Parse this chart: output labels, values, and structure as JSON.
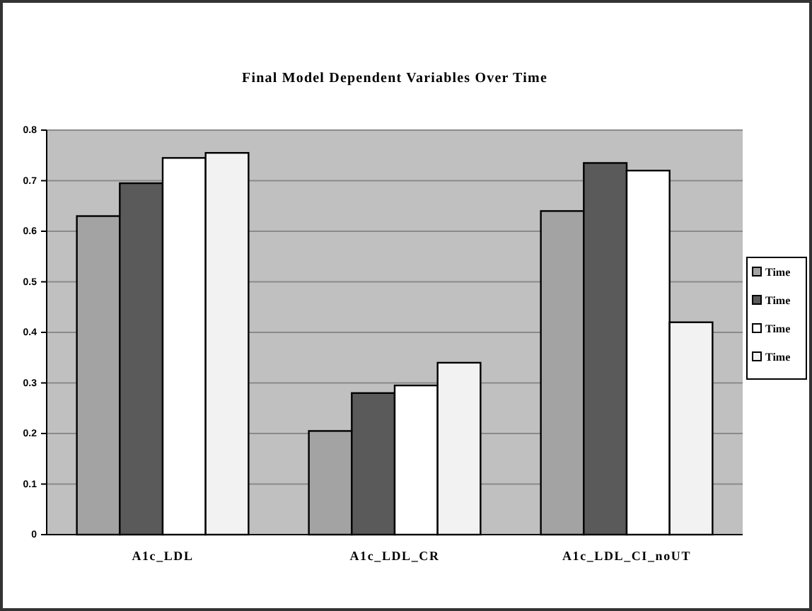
{
  "chart_data": {
    "type": "bar",
    "title": "Final Model Dependent Variables Over Time",
    "categories": [
      "A1c_LDL",
      "A1c_LDL_CR",
      "A1c_LDL_CI_noUT"
    ],
    "series": [
      {
        "name": "Time",
        "color": "#a3a3a3",
        "values": [
          0.63,
          0.205,
          0.64
        ]
      },
      {
        "name": "Time",
        "color": "#5a5a5a",
        "values": [
          0.695,
          0.28,
          0.735
        ]
      },
      {
        "name": "Time",
        "color": "#ffffff",
        "values": [
          0.745,
          0.295,
          0.72
        ]
      },
      {
        "name": "Time",
        "color": "#f2f2f2",
        "values": [
          0.755,
          0.34,
          0.42
        ]
      }
    ],
    "ylim": [
      0,
      0.8
    ],
    "yticks": [
      0,
      0.1,
      0.2,
      0.3,
      0.4,
      0.5,
      0.6,
      0.7,
      0.8
    ],
    "grid": "y",
    "legend": "right"
  }
}
